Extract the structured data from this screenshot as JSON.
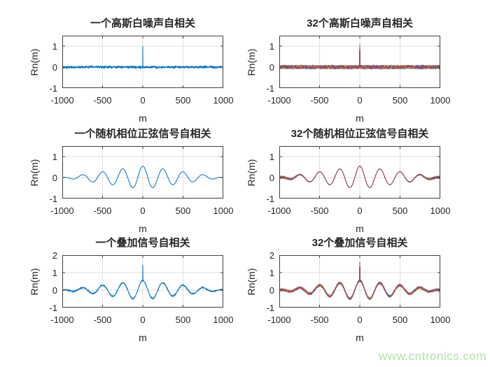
{
  "figure": {
    "background": "#ffffff",
    "axis_color": "#404040",
    "grid_color": "#e0e0e0",
    "text_color": "#262626",
    "single_line_color": "#0072BD",
    "matlab_color_order": [
      "#0072BD",
      "#D95319",
      "#EDB120",
      "#7E2F8E",
      "#77AC30",
      "#4DBEEE",
      "#A2142F"
    ]
  },
  "watermark": {
    "text": "www.cntronics.com",
    "color": "#b2dfa8"
  },
  "chart_data": [
    {
      "type": "line",
      "title": "一个高斯白噪声自相关",
      "xlabel": "m",
      "ylabel": "Rn(m)",
      "xlim": [
        -1000,
        1000
      ],
      "ylim": [
        -1,
        1.5
      ],
      "xticks": [
        -1000,
        -500,
        0,
        500,
        1000
      ],
      "yticks": [
        -1,
        0,
        1
      ],
      "grid": true,
      "legend": "none",
      "n_series": 1,
      "colors": [
        "#0072BD"
      ],
      "signal": {
        "kind": "white-noise-autocorr",
        "peak_at_zero": 1.0,
        "noise_amplitude": 0.035
      }
    },
    {
      "type": "line",
      "title": "32个高斯白噪声自相关",
      "xlabel": "m",
      "ylabel": "Rn(m)",
      "xlim": [
        -1000,
        1000
      ],
      "ylim": [
        -1,
        1.5
      ],
      "xticks": [
        -1000,
        -500,
        0,
        500,
        1000
      ],
      "yticks": [
        -1,
        0,
        1
      ],
      "grid": true,
      "legend": "none",
      "n_series": 32,
      "colors": [
        "#0072BD",
        "#D95319",
        "#EDB120",
        "#7E2F8E",
        "#77AC30",
        "#4DBEEE",
        "#A2142F"
      ],
      "signal": {
        "kind": "white-noise-autocorr",
        "peak_at_zero": 1.05,
        "noise_amplitude": 0.045
      }
    },
    {
      "type": "line",
      "title": "一个随机相位正弦信号自相关",
      "xlabel": "m",
      "ylabel": "Rn(m)",
      "xlim": [
        -1000,
        1000
      ],
      "ylim": [
        -1,
        1.5
      ],
      "xticks": [
        -1000,
        -500,
        0,
        500,
        1000
      ],
      "yticks": [
        -1,
        0,
        1
      ],
      "grid": true,
      "legend": "none",
      "n_series": 1,
      "colors": [
        "#0072BD"
      ],
      "signal": {
        "kind": "sine-autocorr",
        "amplitude": 0.55,
        "period": 250,
        "envelope": "triangular",
        "peak_at_zero": 0.55
      }
    },
    {
      "type": "line",
      "title": "32个随机相位正弦信号自相关",
      "xlabel": "m",
      "ylabel": "Rn(m)",
      "xlim": [
        -1000,
        1000
      ],
      "ylim": [
        -1,
        1.5
      ],
      "xticks": [
        -1000,
        -500,
        0,
        500,
        1000
      ],
      "yticks": [
        -1,
        0,
        1
      ],
      "grid": true,
      "legend": "none",
      "n_series": 32,
      "colors": [
        "#0072BD",
        "#D95319",
        "#EDB120",
        "#7E2F8E",
        "#77AC30",
        "#4DBEEE",
        "#A2142F"
      ],
      "signal": {
        "kind": "sine-autocorr",
        "amplitude": 0.55,
        "period": 250,
        "envelope": "triangular",
        "peak_at_zero": 0.55
      }
    },
    {
      "type": "line",
      "title": "一个叠加信号自相关",
      "xlabel": "m",
      "ylabel": "Rn(m)",
      "xlim": [
        -1000,
        1000
      ],
      "ylim": [
        -1,
        2
      ],
      "xticks": [
        -1000,
        -500,
        0,
        500,
        1000
      ],
      "yticks": [
        -1,
        0,
        1,
        2
      ],
      "grid": true,
      "legend": "none",
      "n_series": 1,
      "colors": [
        "#0072BD"
      ],
      "signal": {
        "kind": "composite-autocorr",
        "amplitude": 0.55,
        "period": 250,
        "envelope": "triangular",
        "noise_amplitude": 0.02,
        "peak_at_zero": 1.45
      }
    },
    {
      "type": "line",
      "title": "32个叠加信号自相关",
      "xlabel": "m",
      "ylabel": "Rn(m)",
      "xlim": [
        -1000,
        1000
      ],
      "ylim": [
        -1,
        2
      ],
      "xticks": [
        -1000,
        -500,
        0,
        500,
        1000
      ],
      "yticks": [
        -1,
        0,
        1,
        2
      ],
      "grid": true,
      "legend": "none",
      "n_series": 32,
      "colors": [
        "#0072BD",
        "#D95319",
        "#EDB120",
        "#7E2F8E",
        "#77AC30",
        "#4DBEEE",
        "#A2142F"
      ],
      "signal": {
        "kind": "composite-autocorr",
        "amplitude": 0.55,
        "period": 250,
        "envelope": "triangular",
        "noise_amplitude": 0.03,
        "peak_at_zero": 1.55
      }
    }
  ]
}
